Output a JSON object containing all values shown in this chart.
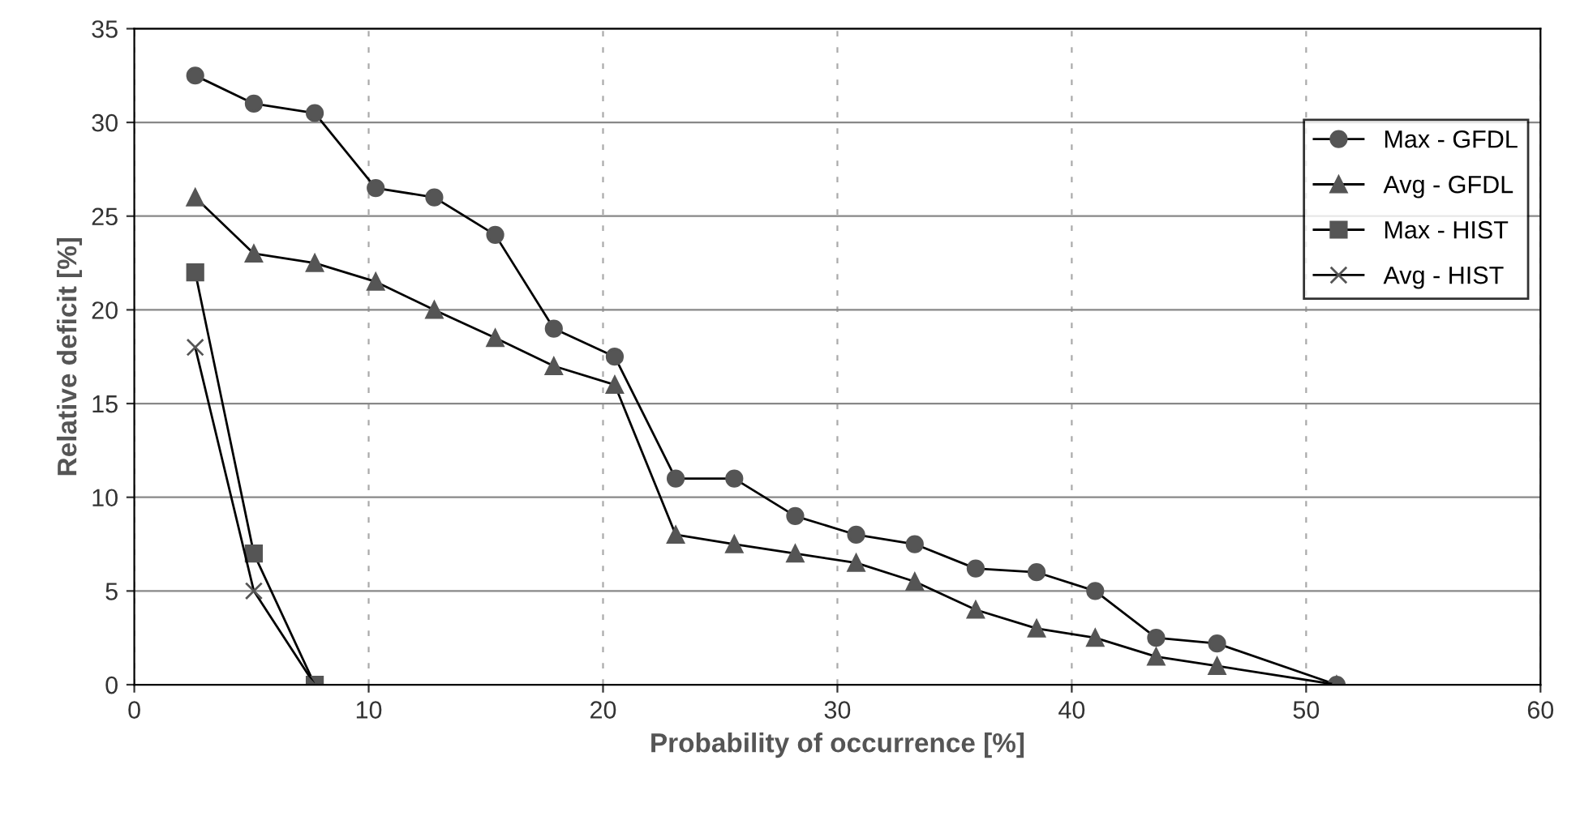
{
  "chart_data": {
    "type": "line",
    "xlabel": "Probability of occurrence [%]",
    "ylabel": "Relative deficit [%]",
    "xlim": [
      0,
      60
    ],
    "xticks": [
      0,
      10,
      20,
      30,
      40,
      50,
      60
    ],
    "ylim": [
      0,
      35
    ],
    "yticks": [
      0,
      5,
      10,
      15,
      20,
      25,
      30,
      35
    ],
    "grid": true,
    "legend": "top right",
    "line_style": "solid",
    "series": [
      {
        "name": "Max - GFDL",
        "color": "#555555",
        "marker": "circle",
        "x": [
          2.6,
          5.1,
          7.7,
          10.3,
          12.8,
          15.4,
          17.9,
          20.5,
          23.1,
          25.6,
          28.2,
          30.8,
          33.3,
          35.9,
          38.5,
          41.0,
          43.6,
          46.2,
          51.3
        ],
        "values": [
          32.5,
          31,
          30.5,
          26.5,
          26,
          24,
          19,
          17.5,
          11,
          11,
          9,
          8,
          7.5,
          6.2,
          6,
          5,
          2.5,
          2.2,
          0
        ]
      },
      {
        "name": "Avg - GFDL",
        "color": "#555555",
        "marker": "triangle",
        "x": [
          2.6,
          5.1,
          7.7,
          10.3,
          12.8,
          15.4,
          17.9,
          20.5,
          23.1,
          25.6,
          28.2,
          30.8,
          33.3,
          35.9,
          38.5,
          41.0,
          43.6,
          46.2,
          51.3
        ],
        "values": [
          26,
          23,
          22.5,
          21.5,
          20,
          18.5,
          17,
          16,
          8,
          7.5,
          7,
          6.5,
          5.5,
          4,
          3,
          2.5,
          1.5,
          1,
          0
        ]
      },
      {
        "name": "Max - HIST",
        "color": "#555555",
        "marker": "square",
        "x": [
          2.6,
          5.1,
          7.7
        ],
        "values": [
          22,
          7,
          0
        ]
      },
      {
        "name": "Avg - HIST",
        "color": "#555555",
        "marker": "cross",
        "x": [
          2.6,
          5.1,
          7.7
        ],
        "values": [
          18,
          5,
          0
        ]
      }
    ]
  }
}
